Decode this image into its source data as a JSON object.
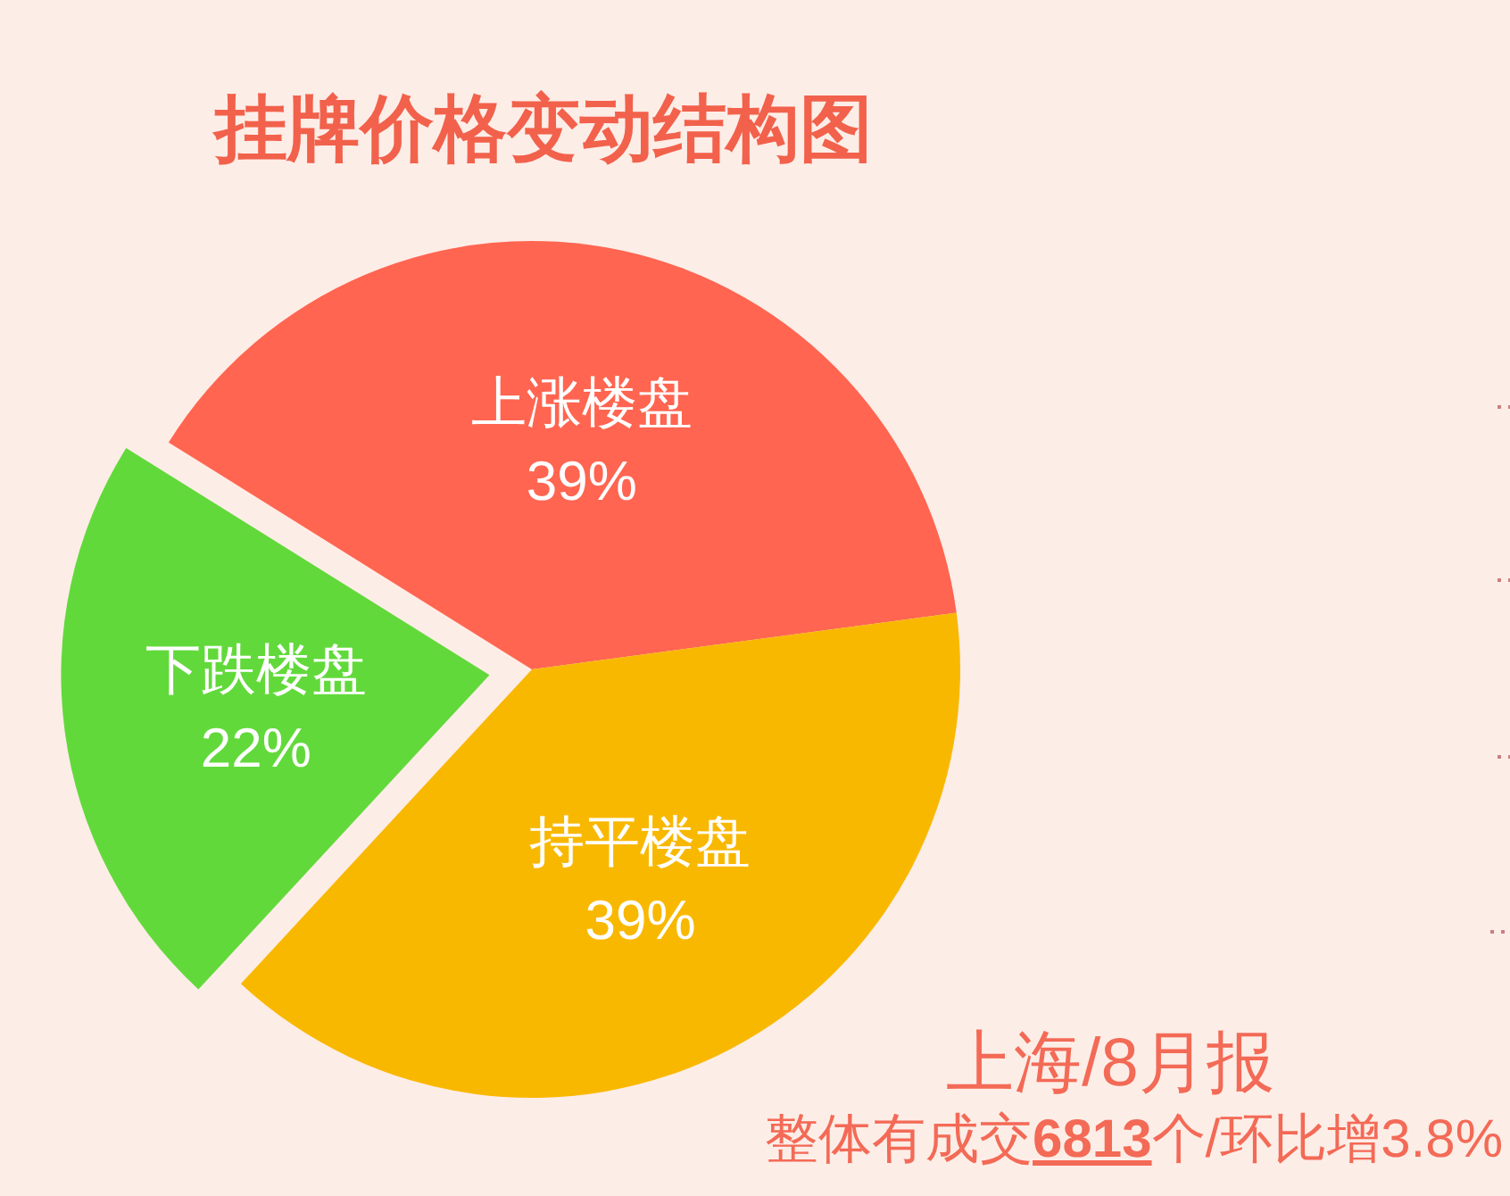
{
  "chart_data": {
    "type": "pie",
    "title": "挂牌价格变动结构图",
    "categories": [
      "上涨楼盘",
      "持平楼盘",
      "下跌楼盘"
    ],
    "values": [
      39,
      39,
      22
    ],
    "colors": [
      "#ff6550",
      "#f9b800",
      "#62d93b"
    ],
    "value_labels": [
      "39%",
      "39%",
      "22%"
    ],
    "annotations": [
      "上海/8月报",
      "整体有成交**6813**个/环比增3.8%"
    ]
  }
}
